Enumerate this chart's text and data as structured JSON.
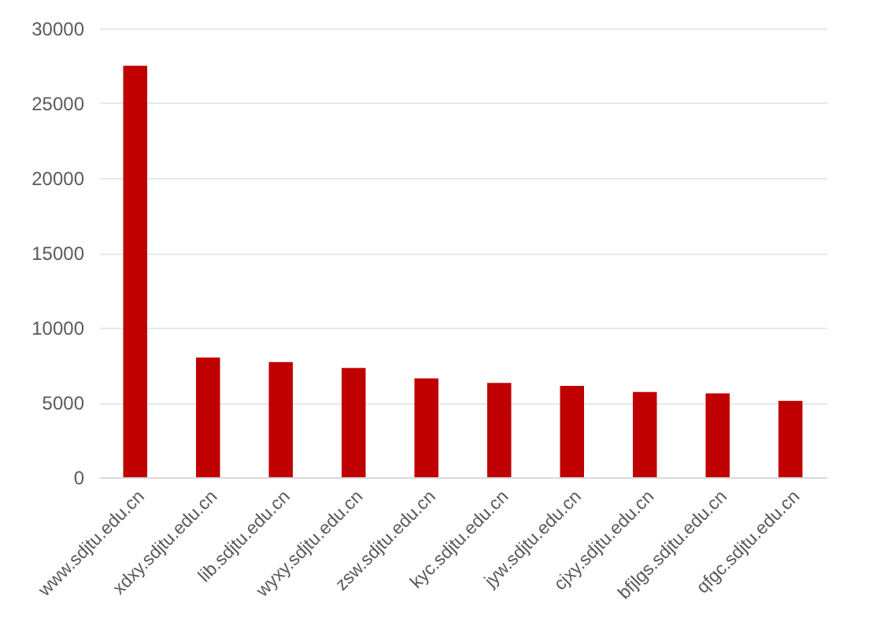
{
  "chart_data": {
    "type": "bar",
    "categories": [
      "www.sdjtu.edu.cn",
      "xdxy.sdjtu.edu.cn",
      "lib.sdjtu.edu.cn",
      "wyxy.sdjtu.edu.cn",
      "zsw.sdjtu.edu.cn",
      "kyc.sdjtu.edu.cn",
      "jyw.sdjtu.edu.cn",
      "cjxy.sdjtu.edu.cn",
      "bfjlgs.sdjtu.edu.cn",
      "qfgc.sdjtu.edu.cn"
    ],
    "values": [
      27500,
      8000,
      7700,
      7300,
      6600,
      6300,
      6100,
      5700,
      5600,
      5100
    ],
    "color": "#c00000",
    "ylim": [
      0,
      30000
    ],
    "yticks": [
      0,
      5000,
      10000,
      15000,
      20000,
      25000,
      30000
    ],
    "grid": "y"
  }
}
